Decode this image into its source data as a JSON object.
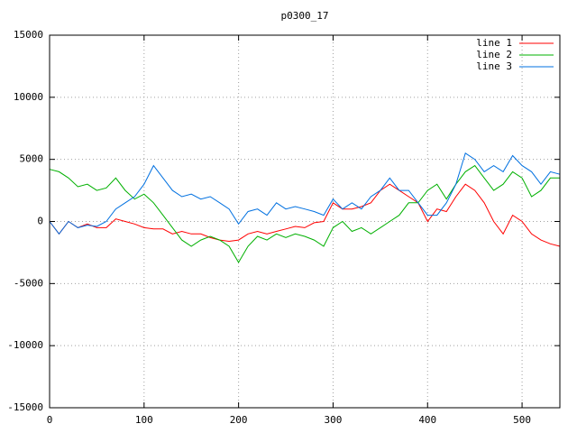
{
  "chart_data": {
    "type": "line",
    "title": "p0300_17",
    "x": [
      0,
      10,
      20,
      30,
      40,
      50,
      60,
      70,
      80,
      90,
      100,
      110,
      120,
      130,
      140,
      150,
      160,
      170,
      180,
      190,
      200,
      210,
      220,
      230,
      240,
      250,
      260,
      270,
      280,
      290,
      300,
      310,
      320,
      330,
      340,
      350,
      360,
      370,
      380,
      390,
      400,
      410,
      420,
      430,
      440,
      450,
      460,
      470,
      480,
      490,
      500,
      510,
      520,
      530,
      540
    ],
    "series": [
      {
        "name": "line 1",
        "color": "#ff0000",
        "values": [
          0,
          -1000,
          0,
          -500,
          -200,
          -500,
          -500,
          200,
          0,
          -200,
          -500,
          -600,
          -600,
          -1000,
          -800,
          -1000,
          -1000,
          -1300,
          -1500,
          -1600,
          -1500,
          -1000,
          -800,
          -1000,
          -800,
          -600,
          -400,
          -500,
          -100,
          0,
          1500,
          1000,
          1000,
          1200,
          1500,
          2500,
          3000,
          2500,
          2000,
          1500,
          0,
          1000,
          800,
          2000,
          3000,
          2500,
          1500,
          0,
          -1000,
          500,
          0,
          -1000,
          -1500,
          -1800,
          -2000
        ]
      },
      {
        "name": "line 2",
        "color": "#00b000",
        "values": [
          4200,
          4000,
          3500,
          2800,
          3000,
          2500,
          2700,
          3500,
          2500,
          1800,
          2200,
          1500,
          500,
          -500,
          -1500,
          -2000,
          -1500,
          -1200,
          -1500,
          -2000,
          -3300,
          -2000,
          -1200,
          -1500,
          -1000,
          -1300,
          -1000,
          -1200,
          -1500,
          -2000,
          -500,
          0,
          -800,
          -500,
          -1000,
          -500,
          0,
          500,
          1500,
          1500,
          2500,
          3000,
          1800,
          3000,
          4000,
          4500,
          3500,
          2500,
          3000,
          4000,
          3500,
          2000,
          2500,
          3500,
          3500
        ]
      },
      {
        "name": "line 3",
        "color": "#0070e0",
        "values": [
          0,
          -1000,
          0,
          -500,
          -300,
          -400,
          0,
          1000,
          1500,
          2000,
          3000,
          4500,
          3500,
          2500,
          2000,
          2200,
          1800,
          2000,
          1500,
          1000,
          -200,
          800,
          1000,
          500,
          1500,
          1000,
          1200,
          1000,
          800,
          500,
          1800,
          1000,
          1500,
          1000,
          2000,
          2500,
          3500,
          2500,
          2500,
          1500,
          500,
          500,
          1500,
          3000,
          5500,
          5000,
          4000,
          4500,
          4000,
          5300,
          4500,
          4000,
          3000,
          4000,
          3800
        ]
      }
    ],
    "xlim": [
      0,
      540
    ],
    "ylim": [
      -15000,
      15000
    ],
    "xticks": [
      0,
      100,
      200,
      300,
      400,
      500
    ],
    "yticks": [
      -15000,
      -10000,
      -5000,
      0,
      5000,
      10000,
      15000
    ],
    "grid": true,
    "legend": "top-right"
  }
}
